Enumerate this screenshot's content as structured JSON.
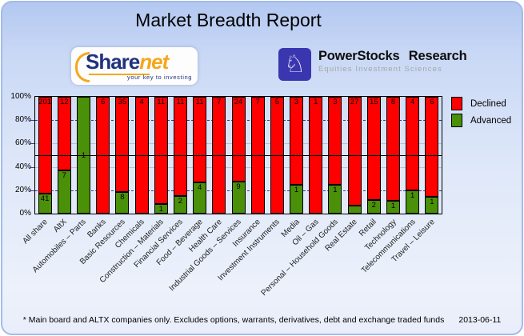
{
  "title": "Market Breadth Report",
  "logos": {
    "sharenet": {
      "brand_part1": "Share",
      "brand_part2": "net",
      "tagline": "your key to investing"
    },
    "powerstocks": {
      "title": "PowerStocks Research",
      "subtitle": "Equities Investment Sciences",
      "knight_glyph": "♘"
    }
  },
  "chart_data": {
    "type": "bar",
    "stacking": "percent",
    "title": "Market Breadth Report",
    "categories": [
      "All share",
      "AltX",
      "Automobiles – Parts",
      "Banks",
      "Basic Resources",
      "Chemicals",
      "Construction – Materials",
      "Financial Services",
      "Food – Beverage",
      "Health Care",
      "Industrial Goods – Services",
      "Insurance",
      "Investment Instruments",
      "Media",
      "Oil – Gas",
      "Personal – Household Goods",
      "Real Estate",
      "Retail",
      "Technology",
      "Telecommunications",
      "Travel – Leisure"
    ],
    "series": [
      {
        "name": "Declined",
        "color": "#FF0000",
        "values": [
          201,
          12,
          0,
          6,
          35,
          4,
          11,
          11,
          11,
          7,
          24,
          7,
          5,
          3,
          1,
          3,
          27,
          15,
          8,
          4,
          6
        ]
      },
      {
        "name": "Advanced",
        "color": "#4A9008",
        "values": [
          41,
          7,
          1,
          0,
          8,
          0,
          1,
          2,
          4,
          0,
          9,
          0,
          0,
          1,
          0,
          1,
          2,
          2,
          1,
          1,
          1
        ]
      }
    ],
    "ylim": [
      0,
      100
    ],
    "y_ticks": [
      0,
      20,
      40,
      60,
      80,
      100
    ],
    "y_tick_suffix": "%",
    "gridlines": [
      {
        "pct": 20,
        "style": "dashed-navy"
      },
      {
        "pct": 40,
        "style": "solid-gray"
      },
      {
        "pct": 50,
        "style": "reference-black"
      },
      {
        "pct": 60,
        "style": "solid-gray"
      },
      {
        "pct": 80,
        "style": "dashed-navy"
      }
    ],
    "grid_colors": {
      "navy": "#3A3A9A",
      "gray": "#B9C2D0",
      "reference": "#000000"
    },
    "legend": {
      "position": "top-right",
      "entries": [
        "Declined",
        "Advanced"
      ]
    },
    "segment_count_labels": true
  },
  "footnote": {
    "text": "* Main board and ALTX companies only. Excludes options, warrants, derivatives, debt and exchange traded funds",
    "date": "2013-06-11"
  }
}
